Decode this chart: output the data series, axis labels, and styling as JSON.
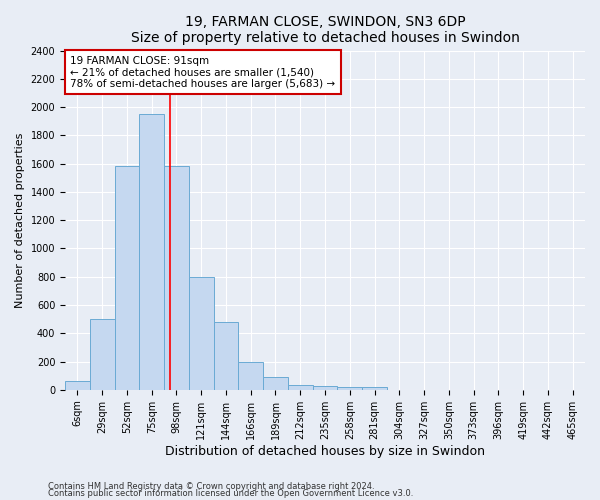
{
  "title": "19, FARMAN CLOSE, SWINDON, SN3 6DP",
  "subtitle": "Size of property relative to detached houses in Swindon",
  "xlabel": "Distribution of detached houses by size in Swindon",
  "ylabel": "Number of detached properties",
  "bar_labels": [
    "6sqm",
    "29sqm",
    "52sqm",
    "75sqm",
    "98sqm",
    "121sqm",
    "144sqm",
    "166sqm",
    "189sqm",
    "212sqm",
    "235sqm",
    "258sqm",
    "281sqm",
    "304sqm",
    "327sqm",
    "350sqm",
    "373sqm",
    "396sqm",
    "419sqm",
    "442sqm",
    "465sqm"
  ],
  "bar_values": [
    60,
    500,
    1580,
    1950,
    1580,
    800,
    480,
    200,
    90,
    35,
    30,
    20,
    20,
    0,
    0,
    0,
    0,
    0,
    0,
    0,
    0
  ],
  "bar_color": "#c5d8f0",
  "bar_edge_color": "#6aaad4",
  "red_line_x": 3.72,
  "annotation_text": "19 FARMAN CLOSE: 91sqm\n← 21% of detached houses are smaller (1,540)\n78% of semi-detached houses are larger (5,683) →",
  "annotation_box_color": "#ffffff",
  "annotation_box_edge": "#cc0000",
  "footnote1": "Contains HM Land Registry data © Crown copyright and database right 2024.",
  "footnote2": "Contains public sector information licensed under the Open Government Licence v3.0.",
  "ylim": [
    0,
    2400
  ],
  "yticks": [
    0,
    200,
    400,
    600,
    800,
    1000,
    1200,
    1400,
    1600,
    1800,
    2000,
    2200,
    2400
  ],
  "background_color": "#e8edf5",
  "plot_background": "#e8edf5",
  "grid_color": "#ffffff",
  "title_fontsize": 10,
  "xlabel_fontsize": 9,
  "ylabel_fontsize": 8,
  "tick_fontsize": 7,
  "annot_fontsize": 7.5,
  "footnote_fontsize": 6
}
